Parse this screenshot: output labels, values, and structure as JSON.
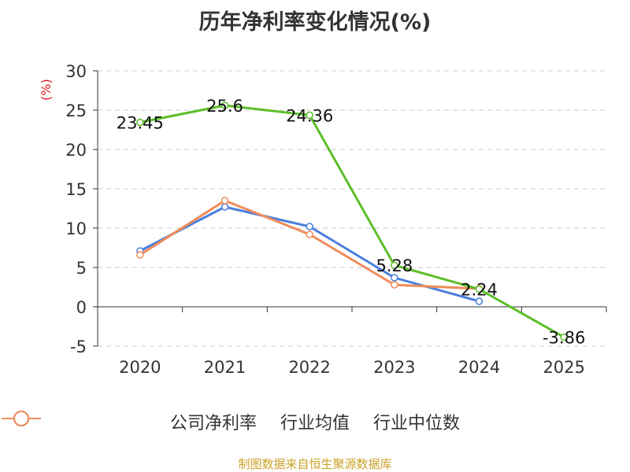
{
  "chart_data": {
    "type": "line",
    "title": "历年净利率变化情况(%)",
    "ylabel": "(%)",
    "categories": [
      "2020",
      "2021",
      "2022",
      "2023",
      "2024",
      "2025"
    ],
    "ylim": [
      -5,
      30
    ],
    "yticks": [
      30,
      25,
      20,
      15,
      10,
      5,
      0,
      -5
    ],
    "grid": true,
    "legend_position": "bottom",
    "series": [
      {
        "name": "公司净利率",
        "color": "#5cbf2a",
        "values": [
          23.45,
          25.6,
          24.36,
          5.28,
          2.24,
          -3.86
        ],
        "labels": [
          "23.45",
          "25.6",
          "24.36",
          "5.28",
          "2.24",
          "-3.86"
        ]
      },
      {
        "name": "行业均值",
        "color": "#4a7fdc",
        "values": [
          7.1,
          12.7,
          10.2,
          3.7,
          0.7,
          null
        ]
      },
      {
        "name": "行业中位数",
        "color": "#f08c5a",
        "values": [
          6.6,
          13.5,
          9.2,
          2.8,
          2.3,
          null
        ]
      }
    ],
    "source": "制图数据来自恒生聚源数据库"
  }
}
